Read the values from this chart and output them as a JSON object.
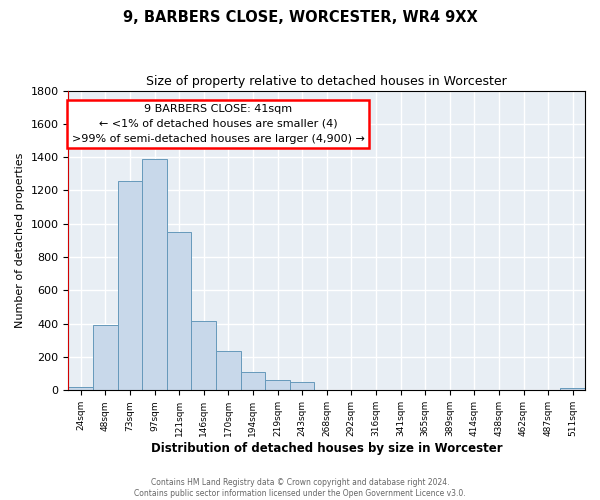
{
  "title": "9, BARBERS CLOSE, WORCESTER, WR4 9XX",
  "subtitle": "Size of property relative to detached houses in Worcester",
  "xlabel": "Distribution of detached houses by size in Worcester",
  "ylabel": "Number of detached properties",
  "bar_color": "#c8d8ea",
  "bar_edge_color": "#6699bb",
  "categories": [
    "24sqm",
    "48sqm",
    "73sqm",
    "97sqm",
    "121sqm",
    "146sqm",
    "170sqm",
    "194sqm",
    "219sqm",
    "243sqm",
    "268sqm",
    "292sqm",
    "316sqm",
    "341sqm",
    "365sqm",
    "389sqm",
    "414sqm",
    "438sqm",
    "462sqm",
    "487sqm",
    "511sqm"
  ],
  "values": [
    20,
    390,
    1255,
    1390,
    950,
    415,
    235,
    110,
    65,
    50,
    0,
    0,
    0,
    0,
    0,
    0,
    0,
    0,
    0,
    0,
    15
  ],
  "ylim": [
    0,
    1800
  ],
  "yticks": [
    0,
    200,
    400,
    600,
    800,
    1000,
    1200,
    1400,
    1600,
    1800
  ],
  "annotation_title": "9 BARBERS CLOSE: 41sqm",
  "annotation_line1": "← <1% of detached houses are smaller (4)",
  "annotation_line2": ">99% of semi-detached houses are larger (4,900) →",
  "red_line_x": 0,
  "footer1": "Contains HM Land Registry data © Crown copyright and database right 2024.",
  "footer2": "Contains public sector information licensed under the Open Government Licence v3.0.",
  "plot_bg_color": "#e8eef4",
  "fig_bg_color": "#ffffff",
  "grid_color": "#ffffff"
}
